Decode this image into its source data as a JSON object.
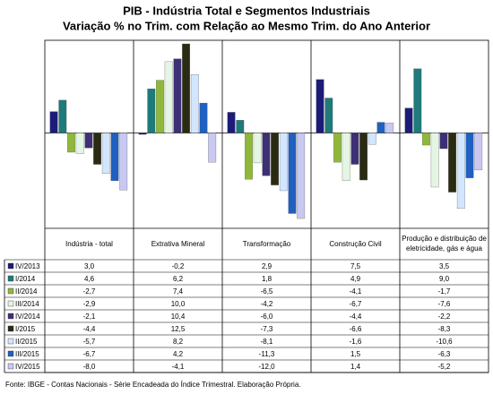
{
  "chart_data": {
    "type": "bar",
    "title": "PIB - Indústria Total e Segmentos Industriais",
    "subtitle": "Variação % no Trim. com Relação ao Mesmo Trim. do Ano Anterior",
    "categories": [
      "Indústria - total",
      "Extrativa Mineral",
      "Transformação",
      "Construção Civil",
      "Produção e distribuição de eletricidade, gás e água"
    ],
    "ylim": [
      -13,
      13
    ],
    "grid": false,
    "series": [
      {
        "name": "IV/2013",
        "color": "#1c1c78",
        "values": [
          3.0,
          -0.2,
          2.9,
          7.5,
          3.5
        ],
        "value_labels": [
          "3,0",
          "-0,2",
          "2,9",
          "7,5",
          "3,5"
        ]
      },
      {
        "name": "I/2014",
        "color": "#1f7a7a",
        "values": [
          4.6,
          6.2,
          1.8,
          4.9,
          9.0
        ],
        "value_labels": [
          "4,6",
          "6,2",
          "1,8",
          "4,9",
          "9,0"
        ]
      },
      {
        "name": "II/2014",
        "color": "#8fb83a",
        "values": [
          -2.7,
          7.4,
          -6.5,
          -4.1,
          -1.7
        ],
        "value_labels": [
          "-2,7",
          "7,4",
          "-6,5",
          "-4,1",
          "-1,7"
        ]
      },
      {
        "name": "III/2014",
        "color": "#e4f5e4",
        "values": [
          -2.9,
          10.0,
          -4.2,
          -6.7,
          -7.6
        ],
        "value_labels": [
          "-2,9",
          "10,0",
          "-4,2",
          "-6,7",
          "-7,6"
        ]
      },
      {
        "name": "IV/2014",
        "color": "#3d3075",
        "values": [
          -2.1,
          10.4,
          -6.0,
          -4.4,
          -2.2
        ],
        "value_labels": [
          "-2,1",
          "10,4",
          "-6,0",
          "-4,4",
          "-2,2"
        ]
      },
      {
        "name": "I/2015",
        "color": "#2b2b14",
        "values": [
          -4.4,
          12.5,
          -7.3,
          -6.6,
          -8.3
        ],
        "value_labels": [
          "-4,4",
          "12,5",
          "-7,3",
          "-6,6",
          "-8,3"
        ]
      },
      {
        "name": "II/2015",
        "color": "#d2e6ff",
        "values": [
          -5.7,
          8.2,
          -8.1,
          -1.6,
          -10.6
        ],
        "value_labels": [
          "-5,7",
          "8,2",
          "-8,1",
          "-1,6",
          "-10,6"
        ]
      },
      {
        "name": "III/2015",
        "color": "#1f60c0",
        "values": [
          -6.7,
          4.2,
          -11.3,
          1.5,
          -6.3
        ],
        "value_labels": [
          "-6,7",
          "4,2",
          "-11,3",
          "1,5",
          "-6,3"
        ]
      },
      {
        "name": "IV/2015",
        "color": "#c8c8f2",
        "values": [
          -8.0,
          -4.1,
          -12.0,
          1.4,
          -5.2
        ],
        "value_labels": [
          "-8,0",
          "-4,1",
          "-12,0",
          "1,4",
          "-5,2"
        ]
      }
    ],
    "footer": "Fonte: IBGE - Contas Nacionais - Série Encadeada do Índice Trimestral. Elaboração Própria."
  }
}
